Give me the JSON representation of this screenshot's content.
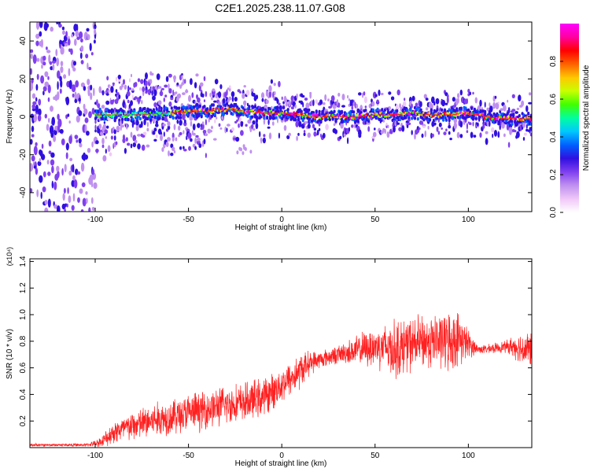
{
  "title": "C2E1.2025.238.11.07.G08",
  "chart_data": [
    {
      "type": "heatmap",
      "name": "spectrogram",
      "xlabel": "Height of straight line (km)",
      "ylabel": "Frequency (Hz)",
      "xlim": [
        -135,
        134
      ],
      "ylim": [
        -50,
        50
      ],
      "xticks": [
        -100,
        -50,
        0,
        50,
        100
      ],
      "yticks": [
        -40,
        -20,
        0,
        20,
        40
      ],
      "ridge_frequency": {
        "x": [
          -100,
          -80,
          -60,
          -40,
          -30,
          -20,
          -10,
          0,
          10,
          20,
          30,
          40,
          50,
          60,
          70,
          80,
          90,
          100,
          110,
          120,
          134
        ],
        "y": [
          1,
          1,
          2,
          3,
          4,
          3,
          2,
          2,
          1,
          0,
          0,
          0,
          1,
          1,
          2,
          1,
          1,
          2,
          0,
          -1,
          -1
        ]
      },
      "colorbar": {
        "label": "Normalized spectral amplitude",
        "range": [
          0,
          1
        ],
        "ticks": [
          "0.0",
          "0.2",
          "0.4",
          "0.6",
          "0.8"
        ],
        "colors": [
          "#ffffff",
          "#f0c8f8",
          "#c090f0",
          "#8040f0",
          "#3010e0",
          "#0060ff",
          "#00c8ff",
          "#00ffa0",
          "#40ff00",
          "#c8ff00",
          "#ffc800",
          "#ff6000",
          "#ff0000",
          "#ff00a0",
          "#ff00ff"
        ]
      }
    },
    {
      "type": "line",
      "name": "snr",
      "xlabel": "Height of straight line (km)",
      "ylabel": "SNR (10 * v/v)",
      "y_multiplier": "(x10⁴)",
      "xlim": [
        -135,
        134
      ],
      "ylim": [
        0,
        1.42
      ],
      "xticks": [
        -100,
        -50,
        0,
        50,
        100
      ],
      "yticks": [
        "0.2",
        "0.4",
        "0.6",
        "0.8",
        "1.0",
        "1.2",
        "1.4"
      ],
      "color": "#ff2020",
      "envelope": {
        "x": [
          -135,
          -105,
          -100,
          -95,
          -90,
          -80,
          -70,
          -60,
          -50,
          -40,
          -30,
          -20,
          -10,
          -5,
          0,
          5,
          10,
          15,
          20,
          30,
          40,
          50,
          55,
          60,
          70,
          80,
          90,
          95,
          100,
          105,
          110,
          120,
          125,
          130,
          134
        ],
        "mean": [
          0.02,
          0.02,
          0.03,
          0.06,
          0.12,
          0.16,
          0.2,
          0.23,
          0.26,
          0.29,
          0.32,
          0.34,
          0.38,
          0.42,
          0.48,
          0.52,
          0.58,
          0.64,
          0.66,
          0.7,
          0.73,
          0.76,
          0.76,
          0.74,
          0.78,
          0.8,
          0.8,
          0.82,
          0.78,
          0.74,
          0.74,
          0.76,
          0.76,
          0.74,
          0.74
        ],
        "amp": [
          0.01,
          0.01,
          0.02,
          0.05,
          0.08,
          0.1,
          0.12,
          0.12,
          0.13,
          0.13,
          0.13,
          0.13,
          0.13,
          0.12,
          0.12,
          0.12,
          0.12,
          0.08,
          0.06,
          0.06,
          0.1,
          0.14,
          0.16,
          0.2,
          0.18,
          0.18,
          0.2,
          0.18,
          0.1,
          0.03,
          0.03,
          0.04,
          0.08,
          0.12,
          0.12
        ]
      }
    }
  ]
}
